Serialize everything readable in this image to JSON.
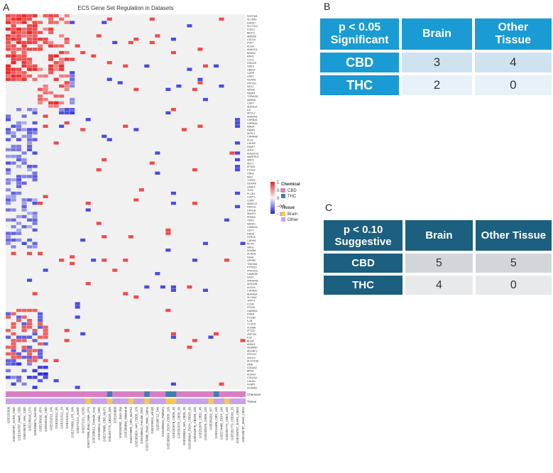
{
  "panels": {
    "a": "A",
    "b": "B",
    "c": "C"
  },
  "chart_data": {
    "type": "heatmap",
    "title": "ECS Gene Set Regulation in Datasets",
    "genes": [
      "SGSTM1",
      "SLC6A9",
      "DHRS7",
      "SLC7A11",
      "FGF21",
      "BEST1",
      "ARID5A",
      "CXCL8",
      "FGF2",
      "PLIN4",
      "ANKHD1",
      "BRAG2",
      "RAN1",
      "CCC1",
      "GHDDS",
      "GDE3",
      "UBE2Z",
      "COPE",
      "USE1",
      "NCAM1",
      "ATP2A1",
      "MGLL",
      "SIRG6",
      "FABP5",
      "TSPAN31",
      "ABHD6",
      "CAST",
      "ADRA1A",
      "IL6",
      "APOL2",
      "ANKRN1",
      "CHRNA1",
      "CHRNA2",
      "MADA",
      "FABP5",
      "ACSL4",
      "CHRNA8",
      "PLS1",
      "CALM2",
      "FABP7",
      "SDH1",
      "KIAA2013",
      "NAPEPLD",
      "SMC2",
      "AKT1",
      "EP300",
      "PTPRF",
      "CNN2",
      "MAS",
      "TGFB1",
      "S100A6",
      "LRRK2",
      "TLR2",
      "PLCB1",
      "CHPT1",
      "COMT",
      "ABHD12",
      "DAGLA",
      "DAGLB",
      "MAGF2",
      "PPARA",
      "TSPO",
      "MASF1",
      "CAMK2A",
      "GGT7",
      "DRD2",
      "HTR1A",
      "CADM2",
      "PDYN",
      "NRG1",
      "EDNRA",
      "ACAD8",
      "FAAH",
      "GPR55",
      "TNKS5A",
      "PTPN22",
      "PRKACB",
      "CAMK2B",
      "SAG1",
      "ZNF804A",
      "ADRA2B",
      "ACE2A",
      "CHRNA7",
      "ADRA2A",
      "SLC6A4",
      "TRPV1",
      "CCNF",
      "STK26",
      "GABRA2",
      "RXRA",
      "PYGB2",
      "IL1B",
      "CLOCK",
      "SCN8A",
      "IFT122",
      "ZNF784",
      "IL32",
      "BDNF",
      "ANKK1",
      "SEMA6D",
      "ADGRF1",
      "ATP2C2",
      "ADH1C",
      "ALOX15B",
      "DMD",
      "COL8A2",
      "BRS3",
      "ACKR3",
      "COL6A3",
      "CALM1",
      "FKBP5",
      "SCARB1"
    ],
    "datasets": [
      "GSE151696",
      "GSE196787_SARS_CBD",
      "GSE196787_Mock_CBD",
      "GSE196787_Hinc_CBD",
      "GSE235616_LPS",
      "GSE208571_NaCBD",
      "GSE235610_VEH",
      "GSE269190_CBD",
      "GSE151512_24h",
      "GSE151512_8h",
      "GSE151512_2h",
      "GSE151512_6h",
      "GSE274989_LPS_24h",
      "GSE272121_eCBD",
      "GSE272121_nCBD",
      "GSE272986_Brain_Male_LPS",
      "GSE168612_Female_Amy",
      "GSE168612_Male_CBD",
      "GSE279889_CBD_MLPS",
      "GSE281779_CBD20_24h",
      "GSE162800",
      "GSE262962_15p1-15p",
      "GSE280890_Mitobond",
      "GSE279889_CBD_MLPS2",
      "GSE205824_Veh_CBD5_12h",
      "GSE168612_Female_DRD",
      "GSE279888_Brain_Male_Saline",
      "GSE115813_ushOil",
      "GSE186712_24h",
      "GSE205824_Platform",
      "GSE205824_EtOH_CBD5_12h",
      "GSE252678_CBD5_4h",
      "GSE252678_CBD5_6h",
      "GSE205824_Veh_CBD5_3h",
      "GSE205824_EtOH_CBD25_6h",
      "GSE252678_CBD20_24h",
      "GSE252678_CBD1_4h",
      "GSE252678_CBD5_24h",
      "GSE256262_WT",
      "GSE214406_CBD_24h",
      "GSE274406_EtOH_24h",
      "GSE281779_CBD1_24h",
      "GSE281779_CBD20_2h",
      "GSE196787_SARS_CBD2",
      "GSE196787_Mock_CBD2"
    ],
    "annotation_rows": [
      "Chemical",
      "Tissue"
    ],
    "chemical": [
      "CBD",
      "CBD",
      "CBD",
      "CBD",
      "CBD",
      "CBD",
      "CBD",
      "CBD",
      "CBD",
      "CBD",
      "CBD",
      "CBD",
      "CBD",
      "CBD",
      "CBD",
      "CBD",
      "CBD",
      "CBD",
      "CBD",
      "THC",
      "CBD",
      "CBD",
      "CBD",
      "CBD",
      "CBD",
      "CBD",
      "THC",
      "CBD",
      "CBD",
      "CBD",
      "THC",
      "THC",
      "CBD",
      "CBD",
      "CBD",
      "CBD",
      "CBD",
      "CBD",
      "CBD",
      "THC",
      "CBD",
      "CBD",
      "CBD",
      "CBD",
      "CBD"
    ],
    "tissue": [
      "Other",
      "Other",
      "Other",
      "Other",
      "Other",
      "Other",
      "Other",
      "Other",
      "Other",
      "Other",
      "Other",
      "Other",
      "Other",
      "Other",
      "Other",
      "Brain",
      "Other",
      "Other",
      "Other",
      "Brain",
      "Other",
      "Other",
      "Other",
      "Brain",
      "Other",
      "Other",
      "Brain",
      "Other",
      "Other",
      "Other",
      "Brain",
      "Brain",
      "Other",
      "Other",
      "Other",
      "Other",
      "Other",
      "Other",
      "Brain",
      "Other",
      "Other",
      "Brain",
      "Other",
      "Other",
      "Other"
    ],
    "color_scale": {
      "range": [
        -1,
        1
      ],
      "ticks": [
        "1",
        "0.5",
        "0",
        "−0.5",
        "−1"
      ],
      "low": "#2222dd",
      "mid": "#f0f0f0",
      "high": "#ee2222"
    },
    "legend": {
      "chemical_title": "Chemical",
      "chemical": [
        {
          "label": "CBD",
          "color": "#d97ec5"
        },
        {
          "label": "THC",
          "color": "#3f7fb5"
        }
      ],
      "tissue_title": "Tissue",
      "tissue": [
        {
          "label": "Brain",
          "color": "#f6c84c"
        },
        {
          "label": "Other",
          "color": "#c9a1ee"
        }
      ]
    },
    "values_note": "",
    "values": []
  },
  "table_b": {
    "header": [
      "p < 0.05\nSignificant",
      "Brain",
      "Other\nTissue"
    ],
    "rows": [
      {
        "label": "CBD",
        "brain": "3",
        "other": "4"
      },
      {
        "label": "THC",
        "brain": "2",
        "other": "0"
      }
    ]
  },
  "table_c": {
    "header": [
      "p < 0.10\nSuggestive",
      "Brain",
      "Other Tissue"
    ],
    "rows": [
      {
        "label": "CBD",
        "brain": "5",
        "other": "5"
      },
      {
        "label": "THC",
        "brain": "4",
        "other": "0"
      }
    ]
  }
}
